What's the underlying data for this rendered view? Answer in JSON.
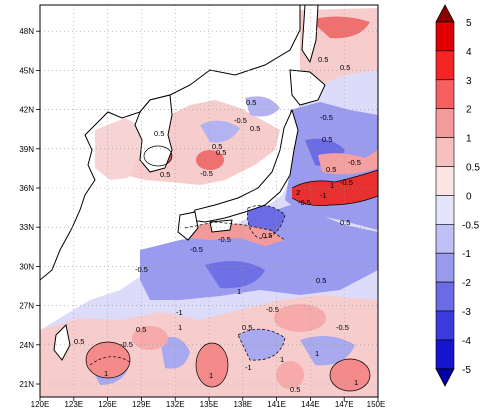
{
  "map": {
    "lon_range": [
      120,
      150
    ],
    "lat_range": [
      20,
      50
    ],
    "lon_ticks": [
      "120E",
      "123E",
      "126E",
      "129E",
      "132E",
      "135E",
      "138E",
      "141E",
      "144E",
      "147E",
      "150E"
    ],
    "lat_ticks": [
      "21N",
      "24N",
      "27N",
      "30N",
      "33N",
      "36N",
      "39N",
      "42N",
      "45N",
      "48N"
    ],
    "contour_labels": [
      "0.5",
      "0.5",
      "-0.5",
      "0.5",
      "-0.5",
      "0.5",
      "-0.5",
      "0.5",
      "0.5",
      "0.5",
      "1",
      "-0.5",
      "-0.5",
      "0.5",
      "2",
      "-1",
      "-0.5",
      "0.5",
      "-0.5",
      "-0.5",
      "-0.5",
      "1",
      "-0.5",
      "0.5",
      "0.5",
      "-1",
      "0.5",
      "1",
      "0.5",
      "-0.5",
      "-0.5",
      "1",
      "1",
      "-1",
      "1",
      "1",
      "1",
      "0.5",
      "0.5",
      "0.5",
      "0.5"
    ]
  },
  "colorbar": {
    "labels": [
      "5",
      "4",
      "3",
      "2",
      "1",
      "0.5",
      "0",
      "-0.5",
      "-1",
      "-2",
      "-3",
      "-4",
      "-5"
    ],
    "colors": [
      "#8b0000",
      "#e00000",
      "#f52525",
      "#f76060",
      "#f59a9a",
      "#f7d4d4",
      "#e8e8ff",
      "#c8c8f5",
      "#9a9aef",
      "#6b6be6",
      "#3b3bdc",
      "#1515cf",
      "#0000a8"
    ]
  }
}
